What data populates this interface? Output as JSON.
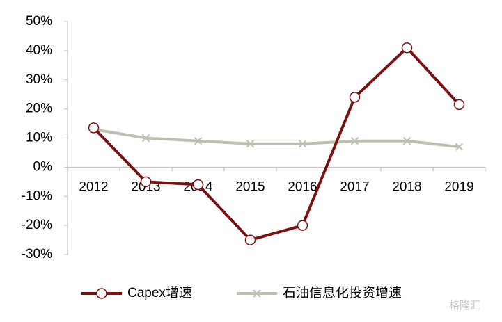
{
  "chart_data": {
    "type": "line",
    "categories": [
      "2012",
      "2013",
      "2014",
      "2015",
      "2016",
      "2017",
      "2018",
      "2019"
    ],
    "series": [
      {
        "name": "Capex增速",
        "color": "#7b1010",
        "marker": "circle",
        "values": [
          13.5,
          -5,
          -6,
          -25,
          -20,
          24,
          41,
          21.5
        ]
      },
      {
        "name": "石油信息化投资增速",
        "color": "#bfbfb1",
        "marker": "x",
        "values": [
          13,
          10,
          9,
          8,
          8,
          9,
          9,
          7
        ]
      }
    ],
    "ylim": [
      -30,
      50
    ],
    "yticks": [
      {
        "value": -30,
        "label": "-30%"
      },
      {
        "value": -20,
        "label": "-20%"
      },
      {
        "value": -10,
        "label": "-10%"
      },
      {
        "value": 0,
        "label": "0%"
      },
      {
        "value": 10,
        "label": "10%"
      },
      {
        "value": 20,
        "label": "20%"
      },
      {
        "value": 30,
        "label": "30%"
      },
      {
        "value": 40,
        "label": "40%"
      },
      {
        "value": 50,
        "label": "50%"
      }
    ],
    "legend": "bottom",
    "watermark": "格隆汇"
  }
}
